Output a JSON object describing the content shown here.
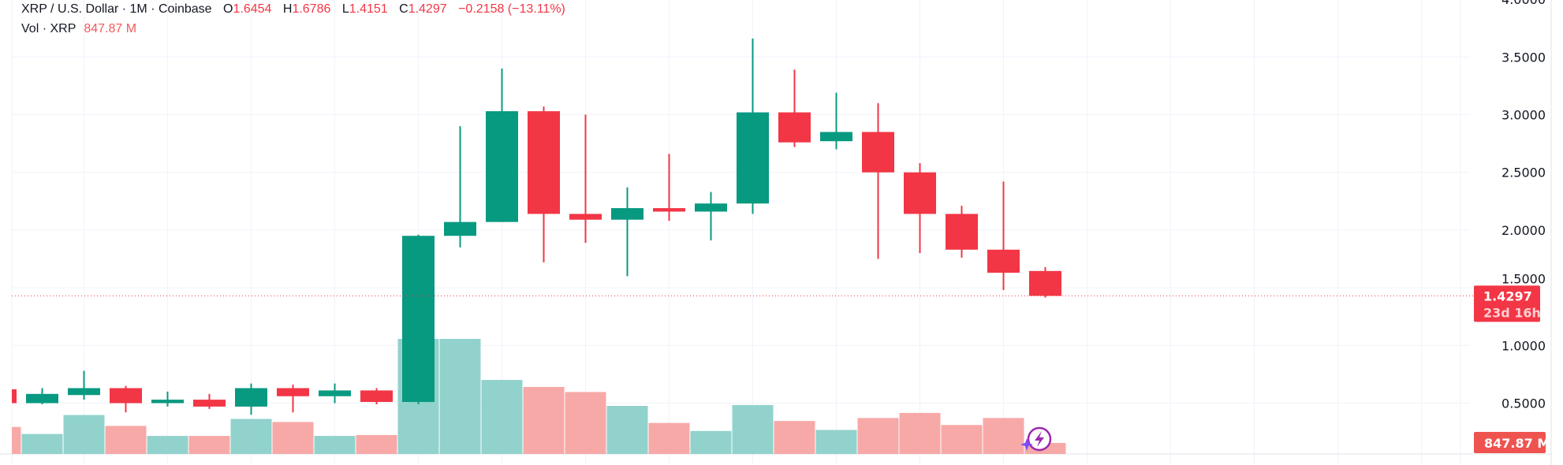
{
  "header": {
    "symbol": "XRP / U.S. Dollar",
    "interval": "1M",
    "exchange": "Coinbase",
    "open_label": "O",
    "open": "1.6454",
    "high_label": "H",
    "high": "1.6786",
    "low_label": "L",
    "low": "1.4151",
    "close_label": "C",
    "close": "1.4297",
    "change": "−0.2158 (−13.11%)",
    "vol_label": "Vol · XRP",
    "vol_value": "847.87 M"
  },
  "colors": {
    "up": "#089981",
    "down": "#f23645",
    "vol_up": "#92d2cc",
    "vol_down": "#f7a9a7",
    "grid": "#f0f3fa"
  },
  "chart_data": {
    "type": "candlestick",
    "y_ticks": [
      "4.0000",
      "3.5000",
      "3.0000",
      "2.5000",
      "2.0000",
      "1.5000",
      "1.0000",
      "0.5000"
    ],
    "y_tick_values": [
      4.0,
      3.5,
      3.0,
      2.5,
      2.0,
      1.5,
      1.0,
      0.5
    ],
    "last_price_label": "1.4297",
    "last_price": 1.4297,
    "countdown": "23d 16h",
    "last_volume_label": "847.87 M",
    "grid": true,
    "candles": [
      {
        "o": 0.62,
        "h": 0.62,
        "l": 0.5,
        "c": 0.5
      },
      {
        "o": 0.5,
        "h": 0.63,
        "l": 0.49,
        "c": 0.58
      },
      {
        "o": 0.57,
        "h": 0.78,
        "l": 0.53,
        "c": 0.63
      },
      {
        "o": 0.63,
        "h": 0.65,
        "l": 0.42,
        "c": 0.5
      },
      {
        "o": 0.5,
        "h": 0.6,
        "l": 0.47,
        "c": 0.53
      },
      {
        "o": 0.53,
        "h": 0.58,
        "l": 0.45,
        "c": 0.47
      },
      {
        "o": 0.47,
        "h": 0.67,
        "l": 0.4,
        "c": 0.63
      },
      {
        "o": 0.63,
        "h": 0.66,
        "l": 0.42,
        "c": 0.56
      },
      {
        "o": 0.56,
        "h": 0.67,
        "l": 0.5,
        "c": 0.61
      },
      {
        "o": 0.61,
        "h": 0.63,
        "l": 0.49,
        "c": 0.51
      },
      {
        "o": 0.51,
        "h": 1.96,
        "l": 0.49,
        "c": 1.95
      },
      {
        "o": 1.95,
        "h": 2.9,
        "l": 1.85,
        "c": 2.07
      },
      {
        "o": 2.07,
        "h": 3.4,
        "l": 2.07,
        "c": 3.03
      },
      {
        "o": 3.03,
        "h": 3.07,
        "l": 1.72,
        "c": 2.14
      },
      {
        "o": 2.14,
        "h": 3.0,
        "l": 1.89,
        "c": 2.09
      },
      {
        "o": 2.09,
        "h": 2.37,
        "l": 1.6,
        "c": 2.19
      },
      {
        "o": 2.19,
        "h": 2.66,
        "l": 2.08,
        "c": 2.16
      },
      {
        "o": 2.16,
        "h": 2.33,
        "l": 1.91,
        "c": 2.23
      },
      {
        "o": 2.23,
        "h": 3.66,
        "l": 2.14,
        "c": 3.02
      },
      {
        "o": 3.02,
        "h": 3.39,
        "l": 2.72,
        "c": 2.76
      },
      {
        "o": 2.77,
        "h": 3.19,
        "l": 2.7,
        "c": 2.85
      },
      {
        "o": 2.85,
        "h": 3.1,
        "l": 1.75,
        "c": 2.5
      },
      {
        "o": 2.5,
        "h": 2.58,
        "l": 1.8,
        "c": 2.14
      },
      {
        "o": 2.14,
        "h": 2.21,
        "l": 1.76,
        "c": 1.83
      },
      {
        "o": 1.83,
        "h": 2.42,
        "l": 1.48,
        "c": 1.63
      },
      {
        "o": 1.6454,
        "h": 1.6786,
        "l": 1.4151,
        "c": 1.4297
      }
    ],
    "volume_m": [
      2080,
      1540,
      3000,
      2160,
      1390,
      1390,
      2700,
      2460,
      1390,
      1460,
      8860,
      8860,
      5700,
      5160,
      4770,
      3700,
      2390,
      1770,
      3770,
      2540,
      1850,
      2770,
      3160,
      2230,
      2770,
      847.87
    ]
  },
  "icons": {
    "assistant": "sparkle-lightning-icon"
  }
}
